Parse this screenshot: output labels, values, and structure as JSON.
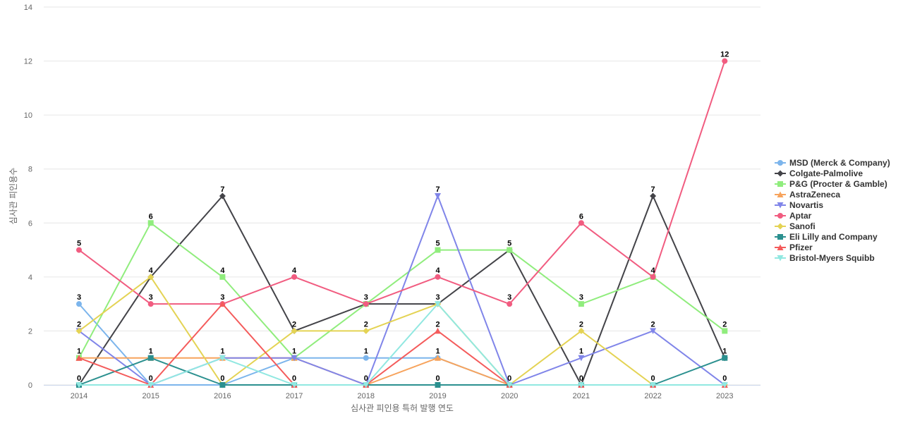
{
  "chart_data": {
    "type": "line",
    "title": "",
    "xlabel": "심사관 피인용 특허 발행 연도",
    "ylabel": "심사관 피인용수",
    "x": [
      "2014",
      "2015",
      "2016",
      "2017",
      "2018",
      "2019",
      "2020",
      "2021",
      "2022",
      "2023"
    ],
    "ylim": [
      0,
      14
    ],
    "yticks": [
      0,
      2,
      4,
      6,
      8,
      10,
      12,
      14
    ],
    "grid": true,
    "legend_position": "right",
    "series": [
      {
        "name": "MSD (Merck & Company)",
        "color": "#7cb5ec",
        "marker": "circle",
        "values": [
          3,
          0,
          0,
          1,
          1,
          1,
          0,
          0,
          0,
          0
        ]
      },
      {
        "name": "Colgate-Palmolive",
        "color": "#434348",
        "marker": "diamond",
        "values": [
          0,
          4,
          7,
          2,
          3,
          3,
          5,
          0,
          7,
          1
        ]
      },
      {
        "name": "P&G (Procter & Gamble)",
        "color": "#90ed7d",
        "marker": "square",
        "values": [
          1,
          6,
          4,
          1,
          3,
          5,
          5,
          3,
          4,
          2
        ]
      },
      {
        "name": "AstraZeneca",
        "color": "#f7a35c",
        "marker": "triangle",
        "values": [
          1,
          1,
          1,
          1,
          0,
          1,
          0,
          0,
          0,
          0
        ]
      },
      {
        "name": "Novartis",
        "color": "#8085e9",
        "marker": "triangle-down",
        "values": [
          2,
          0,
          1,
          1,
          0,
          7,
          0,
          1,
          2,
          0
        ]
      },
      {
        "name": "Aptar",
        "color": "#f15c80",
        "marker": "circle",
        "values": [
          5,
          3,
          3,
          4,
          3,
          4,
          3,
          6,
          4,
          12
        ]
      },
      {
        "name": "Sanofi",
        "color": "#e4d354",
        "marker": "diamond",
        "values": [
          2,
          4,
          0,
          2,
          2,
          3,
          0,
          2,
          0,
          0
        ]
      },
      {
        "name": "Eli Lilly and Company",
        "color": "#2b908f",
        "marker": "square",
        "values": [
          0,
          1,
          0,
          0,
          0,
          0,
          0,
          0,
          0,
          1
        ]
      },
      {
        "name": "Pfizer",
        "color": "#f45b5b",
        "marker": "triangle",
        "values": [
          1,
          0,
          3,
          0,
          0,
          2,
          0,
          0,
          0,
          0
        ]
      },
      {
        "name": "Bristol-Myers Squibb",
        "color": "#91e8e1",
        "marker": "triangle-down",
        "values": [
          0,
          0,
          1,
          0,
          0,
          3,
          0,
          0,
          0,
          0
        ]
      }
    ],
    "data_labels": [
      {
        "x": "2014",
        "text": "5"
      },
      {
        "x": "2014",
        "text": "3"
      },
      {
        "x": "2014",
        "text": "2"
      },
      {
        "x": "2014",
        "text": "1"
      },
      {
        "x": "2014",
        "text": "0"
      },
      {
        "x": "2015",
        "text": "6"
      },
      {
        "x": "2015",
        "text": "4"
      },
      {
        "x": "2015",
        "text": "3"
      },
      {
        "x": "2015",
        "text": "1"
      },
      {
        "x": "2015",
        "text": "0"
      },
      {
        "x": "2016",
        "text": "7"
      },
      {
        "x": "2016",
        "text": "4"
      },
      {
        "x": "2016",
        "text": "3"
      },
      {
        "x": "2016",
        "text": "1"
      },
      {
        "x": "2016",
        "text": "0"
      },
      {
        "x": "2017",
        "text": "4"
      },
      {
        "x": "2017",
        "text": "2"
      },
      {
        "x": "2017",
        "text": "1"
      },
      {
        "x": "2017",
        "text": "0"
      },
      {
        "x": "2018",
        "text": "3"
      },
      {
        "x": "2018",
        "text": "2"
      },
      {
        "x": "2018",
        "text": "1"
      },
      {
        "x": "2018",
        "text": "0"
      },
      {
        "x": "2019",
        "text": "7"
      },
      {
        "x": "2019",
        "text": "5"
      },
      {
        "x": "2019",
        "text": "4"
      },
      {
        "x": "2019",
        "text": "3"
      },
      {
        "x": "2019",
        "text": "2"
      },
      {
        "x": "2019",
        "text": "1"
      },
      {
        "x": "2019",
        "text": "0"
      },
      {
        "x": "2020",
        "text": "5"
      },
      {
        "x": "2020",
        "text": "3"
      },
      {
        "x": "2020",
        "text": "0"
      },
      {
        "x": "2021",
        "text": "6"
      },
      {
        "x": "2021",
        "text": "3"
      },
      {
        "x": "2021",
        "text": "2"
      },
      {
        "x": "2021",
        "text": "1"
      },
      {
        "x": "2021",
        "text": "0"
      },
      {
        "x": "2022",
        "text": "7"
      },
      {
        "x": "2022",
        "text": "4"
      },
      {
        "x": "2022",
        "text": "2"
      },
      {
        "x": "2022",
        "text": "0"
      },
      {
        "x": "2023",
        "text": "12"
      },
      {
        "x": "2023",
        "text": "2"
      },
      {
        "x": "2023",
        "text": "1"
      },
      {
        "x": "2023",
        "text": "0"
      }
    ]
  }
}
